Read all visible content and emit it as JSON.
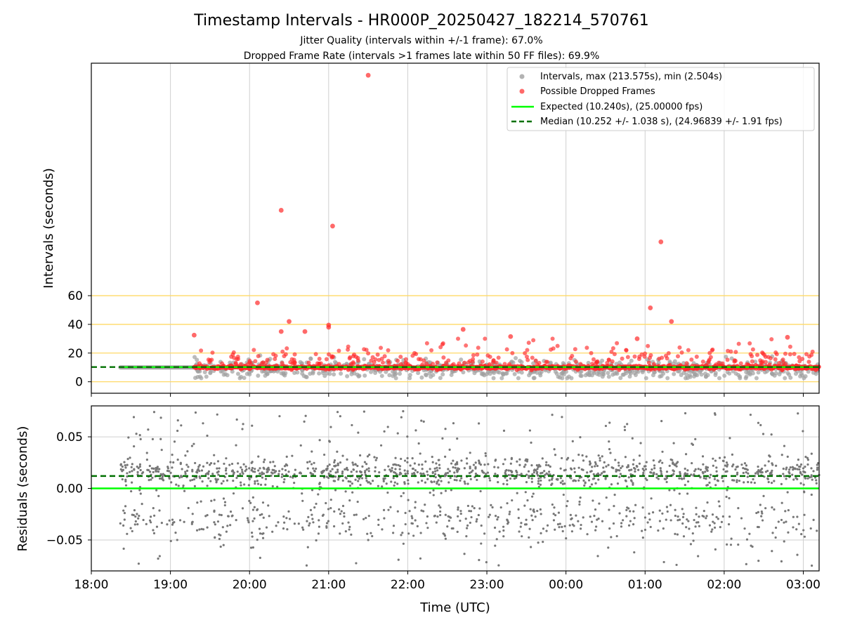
{
  "chart_data": [
    {
      "type": "scatter",
      "title": "Timestamp Intervals - HR000P_20250427_182214_570761",
      "subtitle_lines": [
        "Jitter Quality (intervals within +/-1 frame): 67.0%",
        "Dropped Frame Rate (intervals >1 frames late within 50 FF files): 69.9%"
      ],
      "ylabel": "Intervals (seconds)",
      "ylim": [
        -8,
        222
      ],
      "yticks": [
        0,
        20,
        40,
        60
      ],
      "hlines": [
        0,
        20,
        40,
        60
      ],
      "hline_color": "#ffd966",
      "x_start": "18:00",
      "x_end": "03:12",
      "data_start": "18:22",
      "dense_cluster_center": 10.0,
      "legend_position": "upper right",
      "series": [
        {
          "name": "Intervals, max (213.575s), min (2.504s)",
          "color": "#a0a0a0",
          "kind": "scatter"
        },
        {
          "name": "Possible Dropped Frames",
          "color": "#ff2a2a",
          "kind": "scatter"
        },
        {
          "name": "Expected (10.240s), (25.00000 fps)",
          "color": "#00ff00",
          "kind": "line",
          "value": 10.24
        },
        {
          "name": "Median (10.252 +/- 1.038 s), (24.96839 +/- 1.91 fps)",
          "color": "#007000",
          "kind": "dashed",
          "value": 10.252
        }
      ],
      "outliers": [
        {
          "x": "21:30",
          "y": 213.6
        },
        {
          "x": "20:24",
          "y": 119.5
        },
        {
          "x": "21:03",
          "y": 108.5
        },
        {
          "x": "01:12",
          "y": 97.5
        },
        {
          "x": "20:06",
          "y": 55
        },
        {
          "x": "01:04",
          "y": 51.5
        },
        {
          "x": "01:20",
          "y": 42
        },
        {
          "x": "21:00",
          "y": 39.5
        },
        {
          "x": "21:00",
          "y": 38
        },
        {
          "x": "20:30",
          "y": 42
        },
        {
          "x": "20:24",
          "y": 35
        },
        {
          "x": "22:42",
          "y": 36.5
        },
        {
          "x": "20:42",
          "y": 35
        },
        {
          "x": "23:18",
          "y": 31.5
        },
        {
          "x": "00:54",
          "y": 30
        },
        {
          "x": "02:48",
          "y": 31
        },
        {
          "x": "19:18",
          "y": 32.5
        }
      ]
    },
    {
      "type": "scatter",
      "ylabel": "Residuals (seconds)",
      "xlabel": "Time (UTC)",
      "ylim": [
        -0.08,
        0.08
      ],
      "yticks": [
        "0.05",
        "0.00",
        "−0.05"
      ],
      "ytick_values": [
        0.05,
        0.0,
        -0.05
      ],
      "xticks": [
        "18:00",
        "19:00",
        "20:00",
        "21:00",
        "22:00",
        "23:00",
        "00:00",
        "01:00",
        "02:00",
        "03:00"
      ],
      "point_color": "#777777",
      "expected_line": 0.0,
      "median_line": 0.012,
      "expected_color": "#00ff00",
      "median_color": "#007000"
    }
  ]
}
